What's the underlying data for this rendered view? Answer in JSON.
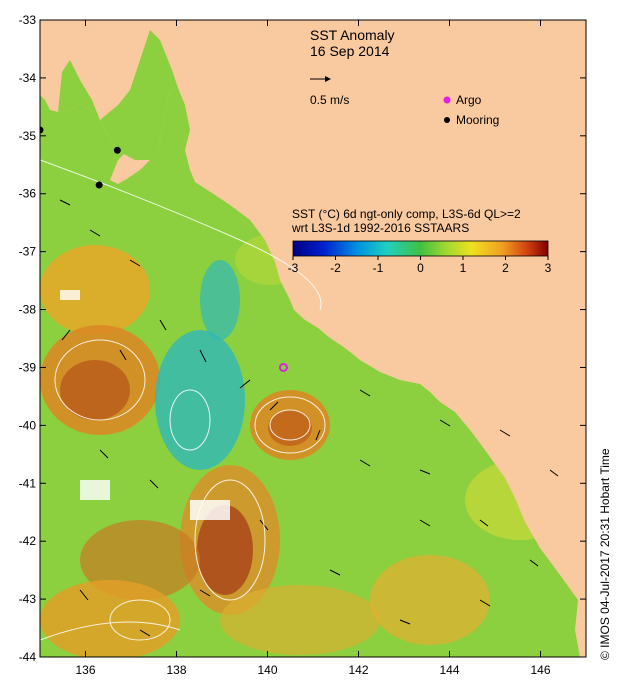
{
  "title": "SST Anomaly",
  "date": "16 Sep 2014",
  "scale_arrow_label": "0.5 m/s",
  "legend_markers": [
    {
      "label": "Argo",
      "color": "#e020e0"
    },
    {
      "label": "Mooring",
      "color": "#000000"
    }
  ],
  "colorbar": {
    "title_line1": "SST (°C) 6d ngt-only comp, L3S-6d QL>=2",
    "title_line2": "wrt L3S-1d 1992-2016 SSTAARS",
    "ticks": [
      "-3",
      "-2",
      "-1",
      "0",
      "1",
      "2",
      "3"
    ]
  },
  "axes": {
    "x_ticks": [
      "136",
      "138",
      "140",
      "142",
      "144",
      "146"
    ],
    "y_ticks": [
      "-33",
      "-34",
      "-35",
      "-36",
      "-37",
      "-38",
      "-39",
      "-40",
      "-41",
      "-42",
      "-43",
      "-44"
    ],
    "x_range": [
      135,
      147
    ],
    "y_range": [
      -44,
      -33
    ]
  },
  "credit": "© IMOS 04-Jul-2017 20:31 Hobart Time",
  "colors": {
    "land": "#f9c9a0",
    "ocean_base": "#8cd040",
    "warm": "#e0a020",
    "hot": "#b04a18",
    "cool": "#30b8b8"
  },
  "moorings": [
    {
      "lon": 135.0,
      "lat": -34.9
    },
    {
      "lon": 136.7,
      "lat": -35.25
    },
    {
      "lon": 136.3,
      "lat": -35.85
    }
  ],
  "argo_floats": [
    {
      "lon": 140.35,
      "lat": -39.0
    }
  ]
}
